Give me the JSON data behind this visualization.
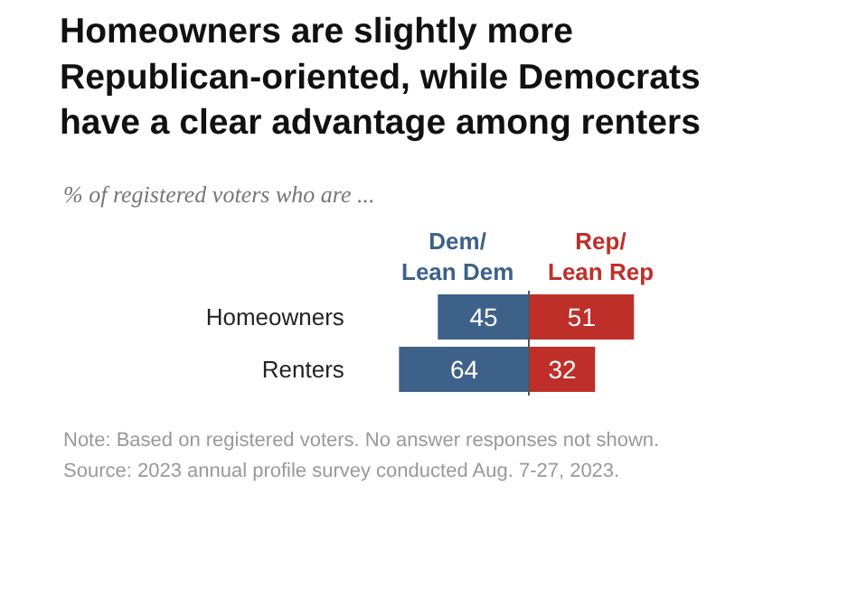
{
  "chart_data": [
    {
      "type": "bar",
      "orientation": "horizontal",
      "title": "Homeowners are slightly more Republican-oriented, while Democrats have a clear advantage among renters",
      "subtitle": "% of registered voters who are ...",
      "categories": [
        "Homeowners",
        "Renters"
      ],
      "series": [
        {
          "name": "Dem/ Lean Dem",
          "color": "#3d6189",
          "values": [
            45,
            64
          ]
        }
      ],
      "tick_labels": "y",
      "data_labels": true,
      "annotations": [
        "Note: Based on registered voters. No answer responses not shown.",
        "Source: 2023 annual profile survey conducted Aug. 7-27, 2023."
      ]
    },
    {
      "type": "bar",
      "orientation": "horizontal",
      "categories": [
        "Homeowners",
        "Renters"
      ],
      "series": [
        {
          "name": "Rep/ Lean Rep",
          "color": "#bf2f2a",
          "values": [
            51,
            32
          ]
        }
      ],
      "tick_labels": false,
      "data_labels": true
    }
  ]
}
